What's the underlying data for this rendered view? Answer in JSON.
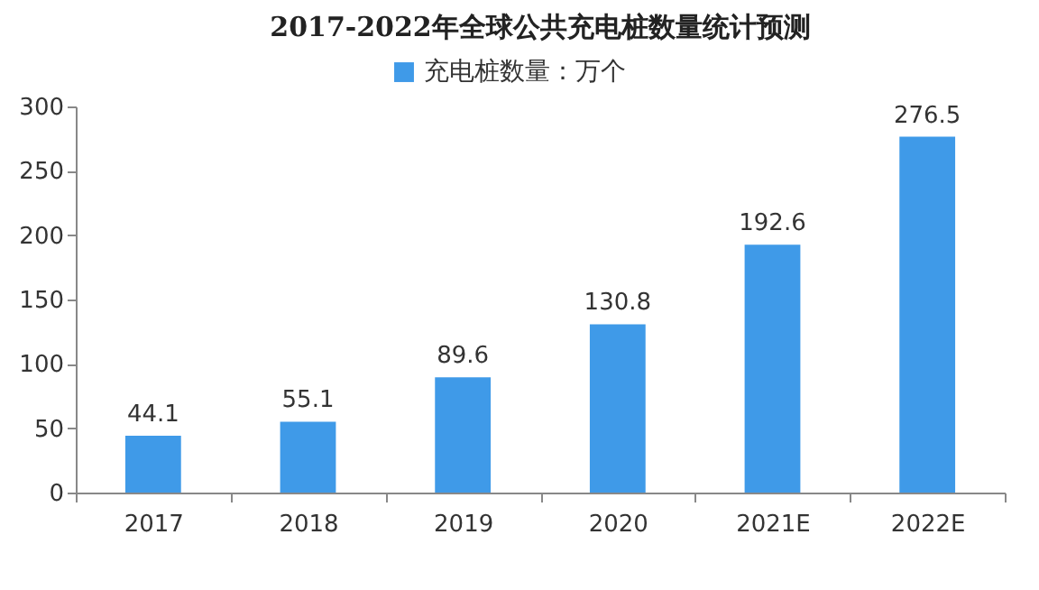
{
  "chart_data": {
    "type": "bar",
    "title": "2017-2022年全球公共充电桩数量统计预测",
    "categories": [
      "2017",
      "2018",
      "2019",
      "2020",
      "2021E",
      "2022E"
    ],
    "series": [
      {
        "name": "充电桩数量：万个",
        "color": "#3f9ae8",
        "values": [
          44.1,
          55.1,
          89.6,
          130.8,
          192.6,
          276.5
        ]
      }
    ],
    "ylim": [
      0,
      300
    ],
    "yticks": [
      0,
      50,
      100,
      150,
      200,
      250,
      300
    ],
    "data_labels": true,
    "legend": "top",
    "grid": false
  }
}
